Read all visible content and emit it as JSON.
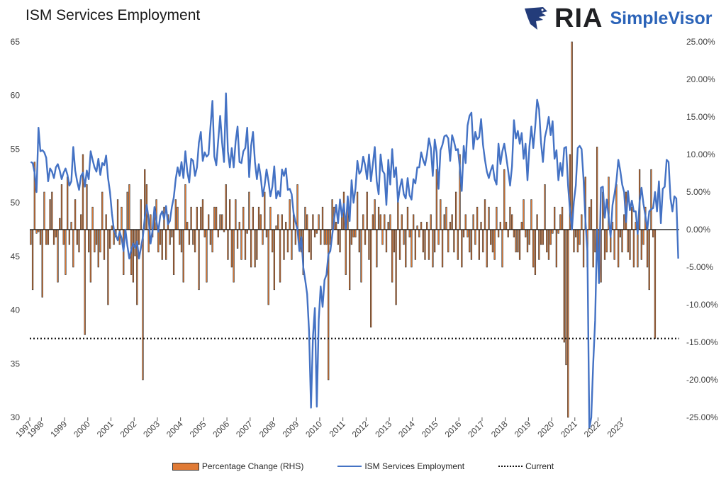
{
  "chart_data": {
    "type": "bar+line",
    "title": "ISM Services Employment",
    "xlabel": "",
    "ylabel_left": "",
    "ylabel_right": "",
    "ylim_left": [
      30,
      65
    ],
    "ylim_right": [
      -25,
      25
    ],
    "yticks_left": [
      "65",
      "60",
      "55",
      "50",
      "45",
      "40",
      "35",
      "30"
    ],
    "yticks_right": [
      "25.00%",
      "20.00%",
      "15.00%",
      "10.00%",
      "5.00%",
      "0.00%",
      "-5.00%",
      "-10.00%",
      "-15.00%",
      "-20.00%",
      "-25.00%"
    ],
    "x_tick_labels": [
      "1997",
      "1998",
      "1999",
      "2000",
      "2001",
      "2002",
      "2003",
      "2004",
      "2005",
      "2006",
      "2007",
      "2008",
      "2009",
      "2010",
      "2011",
      "2012",
      "2013",
      "2014",
      "2015",
      "2016",
      "2017",
      "2018",
      "2019",
      "2020",
      "2021",
      "2022",
      "2023"
    ],
    "start": "1997-07",
    "frequency": "monthly",
    "grid": false,
    "legend_position": "bottom",
    "series": [
      {
        "name": "Percentage Change (RHS)",
        "type": "bar",
        "axis": "right",
        "color": "#e07a35",
        "values": [
          -2.0,
          -8.0,
          9.0,
          -0.5,
          -0.3,
          -2.0,
          -9.0,
          5.0,
          -2.0,
          -2.0,
          4.0,
          5.0,
          -2.0,
          -1.0,
          -7.0,
          1.5,
          6.0,
          -2.0,
          -6.0,
          7.0,
          -2.0,
          1.0,
          -5.0,
          4.0,
          -2.0,
          -3.0,
          2.0,
          10.0,
          -14.0,
          6.0,
          -3.0,
          -7.0,
          3.0,
          -3.0,
          -2.0,
          -5.0,
          -3.0,
          5.0,
          -4.0,
          2.0,
          -10.0,
          -2.5,
          0.5,
          -2.0,
          -1.0,
          4.0,
          -2.0,
          3.0,
          -6.0,
          -1.0,
          5.0,
          6.0,
          -6.0,
          -7.0,
          -3.5,
          -10.0,
          -2.0,
          4.0,
          -20.0,
          8.0,
          6.0,
          -3.0,
          2.0,
          -1.0,
          2.0,
          4.0,
          -3.0,
          -2.0,
          -4.0,
          3.0,
          -4.0,
          2.0,
          -2.0,
          -1.0,
          -6.0,
          4.0,
          3.0,
          -2.0,
          -3.0,
          -7.0,
          6.0,
          1.0,
          -2.0,
          3.0,
          -2.0,
          -3.0,
          3.0,
          -8.0,
          3.0,
          4.0,
          -1.0,
          -7.0,
          2.0,
          -2.0,
          -3.0,
          3.0,
          3.0,
          -1.0,
          2.0,
          2.0,
          -0.3,
          6.0,
          -4.0,
          4.0,
          -5.0,
          -7.0,
          4.0,
          -2.5,
          1.0,
          -4.0,
          3.0,
          -4.0,
          -0.5,
          5.0,
          -5.0,
          3.0,
          -5.0,
          -4.0,
          3.0,
          2.0,
          -2.0,
          5.0,
          -1.0,
          -10.0,
          3.0,
          -3.0,
          -8.0,
          0.5,
          2.0,
          -7.0,
          2.0,
          -4.0,
          1.0,
          -3.0,
          4.0,
          -4.0,
          2.0,
          -2.0,
          6.0,
          -2.0,
          -3.0,
          -6.0,
          3.0,
          2.0,
          -3.0,
          -4.0,
          2.0,
          -1.0,
          -0.5,
          2.0,
          -2.0,
          3.0,
          -2.0,
          -2.0,
          -20.0,
          -2.0,
          4.0,
          3.0,
          1.0,
          -2.0,
          -3.0,
          2.0,
          5.0,
          -6.0,
          4.0,
          -8.0,
          -2.0,
          -1.0,
          -1.0,
          5.0,
          -3.0,
          -7.0,
          2.0,
          -2.0,
          5.0,
          -4.0,
          -13.0,
          2.0,
          4.0,
          -5.0,
          3.0,
          2.0,
          -2.0,
          2.0,
          -3.0,
          1.0,
          2.0,
          -7.0,
          -3.0,
          -10.0,
          5.0,
          -4.0,
          2.0,
          -2.0,
          -5.0,
          3.0,
          -1.0,
          -5.0,
          2.0,
          -4.0,
          0.5,
          -1.0,
          1.0,
          -3.0,
          -4.0,
          1.0,
          -4.0,
          2.0,
          -5.0,
          -3.0,
          8.0,
          -2.0,
          4.0,
          -5.0,
          2.0,
          3.0,
          -3.0,
          1.0,
          2.0,
          -3.0,
          5.0,
          -4.0,
          10.0,
          -5.0,
          -1.0,
          2.0,
          -1.0,
          -3.0,
          -4.0,
          2.0,
          -2.0,
          3.0,
          -4.0,
          1.0,
          -3.0,
          4.0,
          -5.0,
          3.0,
          -2.0,
          -3.0,
          -4.0,
          3.0,
          -1.0,
          1.0,
          -5.0,
          8.0,
          1.0,
          -1.0,
          3.0,
          2.0,
          -1.0,
          -3.0,
          -3.0,
          -4.0,
          1.0,
          4.0,
          -1.0,
          -3.0,
          -2.0,
          4.0,
          -5.0,
          -6.0,
          2.0,
          -4.0,
          -2.0,
          -2.0,
          6.0,
          -3.0,
          -4.0,
          -2.0,
          -0.5,
          3.0,
          -5.0,
          -0.5,
          2.0,
          3.0,
          -15.0,
          -18.0,
          -25.0,
          10.0,
          25.0,
          -3.0,
          -1.0,
          -3.0,
          -2.0,
          2.0,
          -5.0,
          7.0,
          -5.0,
          3.0,
          4.0,
          -5.0,
          -3.0,
          11.0,
          -3.0,
          -7.0,
          5.0,
          -4.0,
          -3.0,
          7.0,
          -3.0,
          1.0,
          -4.0,
          6.0,
          -5.0,
          -1.0,
          -3.0,
          2.0,
          5.0,
          -3.0,
          -4.0,
          3.0,
          -5.0,
          1.0,
          -5.0,
          8.0,
          -4.0,
          -2.0,
          3.0,
          -5.0,
          -8.0,
          8.0,
          -1.0,
          -14.5
        ]
      },
      {
        "name": "ISM Services Employment",
        "type": "line",
        "axis": "left",
        "color": "#4472c4",
        "values": [
          53.8,
          53.7,
          52.8,
          51.0,
          57.0,
          54.8,
          54.9,
          54.7,
          54.2,
          52.0,
          53.2,
          52.9,
          52.3,
          53.3,
          53.6,
          53.0,
          52.2,
          52.8,
          53.2,
          52.6,
          51.6,
          52.0,
          55.2,
          53.0,
          52.0,
          51.2,
          52.5,
          52.8,
          51.5,
          53.0,
          52.2,
          54.8,
          54.0,
          53.3,
          52.9,
          54.1,
          52.6,
          53.7,
          53.5,
          54.4,
          52.3,
          51.0,
          49.0,
          47.5,
          47.0,
          46.5,
          47.3,
          46.7,
          45.5,
          47.5,
          46.0,
          44.8,
          45.6,
          46.2,
          45.8,
          46.4,
          44.8,
          45.8,
          46.8,
          48.6,
          49.8,
          48.5,
          46.2,
          47.4,
          49.6,
          48.3,
          47.3,
          48.8,
          49.2,
          48.5,
          49.7,
          48.0,
          48.3,
          49.6,
          50.5,
          52.2,
          53.3,
          52.5,
          53.8,
          52.3,
          54.8,
          52.9,
          51.9,
          54.1,
          53.9,
          52.5,
          53.3,
          55.6,
          56.6,
          53.9,
          54.7,
          54.3,
          54.5,
          57.1,
          59.5,
          54.3,
          53.5,
          55.8,
          58.1,
          55.6,
          53.8,
          60.2,
          54.8,
          53.3,
          55.1,
          53.3,
          55.7,
          57.1,
          53.8,
          53.7,
          54.8,
          55.1,
          57.0,
          52.4,
          55.3,
          56.6,
          53.8,
          52.2,
          53.6,
          52.4,
          50.6,
          51.6,
          53.1,
          52.0,
          50.6,
          51.5,
          53.4,
          50.4,
          51.1,
          50.6,
          53.1,
          52.5,
          53.2,
          51.2,
          51.3,
          50.8,
          49.0,
          48.2,
          47.5,
          45.5,
          46.8,
          44.0,
          42.8,
          41.5,
          38.0,
          30.9,
          37.5,
          40.2,
          31.0,
          39.1,
          42.2,
          40.3,
          42.8,
          43.3,
          45.2,
          45.5,
          47.0,
          48.5,
          49.8,
          48.1,
          50.3,
          48.7,
          49.9,
          47.6,
          50.6,
          48.3,
          52.1,
          50.0,
          51.3,
          53.9,
          52.7,
          53.0,
          54.3,
          53.5,
          52.2,
          54.5,
          52.0,
          53.6,
          55.2,
          52.0,
          50.8,
          54.5,
          53.0,
          52.7,
          49.8,
          54.0,
          51.7,
          55.0,
          52.4,
          53.3,
          50.1,
          51.4,
          52.2,
          50.8,
          50.4,
          52.3,
          50.7,
          50.3,
          52.2,
          51.8,
          53.3,
          53.3,
          54.7,
          54.0,
          53.5,
          54.5,
          56.0,
          55.1,
          52.5,
          55.9,
          54.7,
          51.3,
          54.9,
          55.4,
          56.2,
          56.3,
          56.0,
          53.9,
          56.3,
          55.7,
          54.9,
          55.0,
          53.3,
          51.1,
          55.3,
          53.7,
          57.2,
          58.1,
          58.4,
          55.0,
          56.6,
          55.9,
          56.1,
          57.8,
          55.4,
          54.0,
          52.9,
          52.3,
          53.0,
          53.5,
          52.2,
          51.7,
          55.5,
          53.6,
          54.8,
          55.5,
          54.3,
          53.0,
          51.6,
          53.4,
          57.7,
          56.0,
          56.7,
          55.5,
          56.5,
          54.1,
          55.5,
          52.1,
          55.2,
          57.1,
          55.1,
          57.1,
          59.6,
          58.7,
          55.6,
          53.8,
          56.1,
          56.9,
          58.0,
          56.3,
          57.6,
          54.1,
          54.9,
          52.1,
          53.7,
          52.5,
          55.1,
          55.2,
          51.6,
          49.3,
          47.5,
          50.1,
          51.6,
          55.1,
          55.3,
          55.0,
          52.2,
          48.3,
          45.5,
          29.0,
          30.0,
          35.0,
          39.0,
          47.5,
          42.5,
          51.4,
          51.5,
          48.6,
          50.3,
          48.7,
          46.8,
          49.8,
          50.8,
          52.0,
          54.0,
          53.0,
          51.7,
          51.0,
          48.2,
          51.1,
          49.3,
          50.2,
          49.2,
          49.2,
          47.1,
          50.1,
          51.4,
          49.9,
          48.8,
          47.5,
          49.2,
          49.4,
          49.5,
          51.0,
          49.2,
          52.0,
          48.1,
          51.3,
          51.5,
          54.0,
          53.8,
          50.4,
          49.2,
          50.6,
          50.4,
          44.8
        ]
      },
      {
        "name": "Current",
        "type": "hline",
        "axis": "right",
        "value": -14.5,
        "color": "#111111"
      }
    ]
  }
}
